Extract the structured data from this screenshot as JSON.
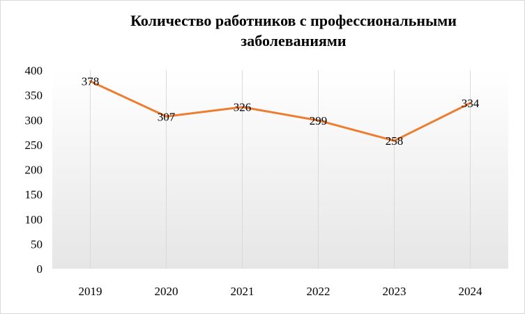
{
  "chart_data": {
    "type": "line",
    "title": "Количество работников с профессиональными заболеваниями",
    "xlabel": "",
    "ylabel": "",
    "categories": [
      "2019",
      "2020",
      "2021",
      "2022",
      "2023",
      "2024"
    ],
    "series": [
      {
        "values": [
          378,
          307,
          326,
          299,
          258,
          334
        ],
        "color": "#ED7D31"
      }
    ],
    "data_labels": [
      "378",
      "307",
      "326",
      "299",
      "258",
      "334"
    ],
    "ylim": [
      0,
      400
    ],
    "yticks": [
      "0",
      "50",
      "100",
      "150",
      "200",
      "250",
      "300",
      "350",
      "400"
    ],
    "grid": "vertical",
    "legend": "none",
    "plot_background": "gradient"
  }
}
